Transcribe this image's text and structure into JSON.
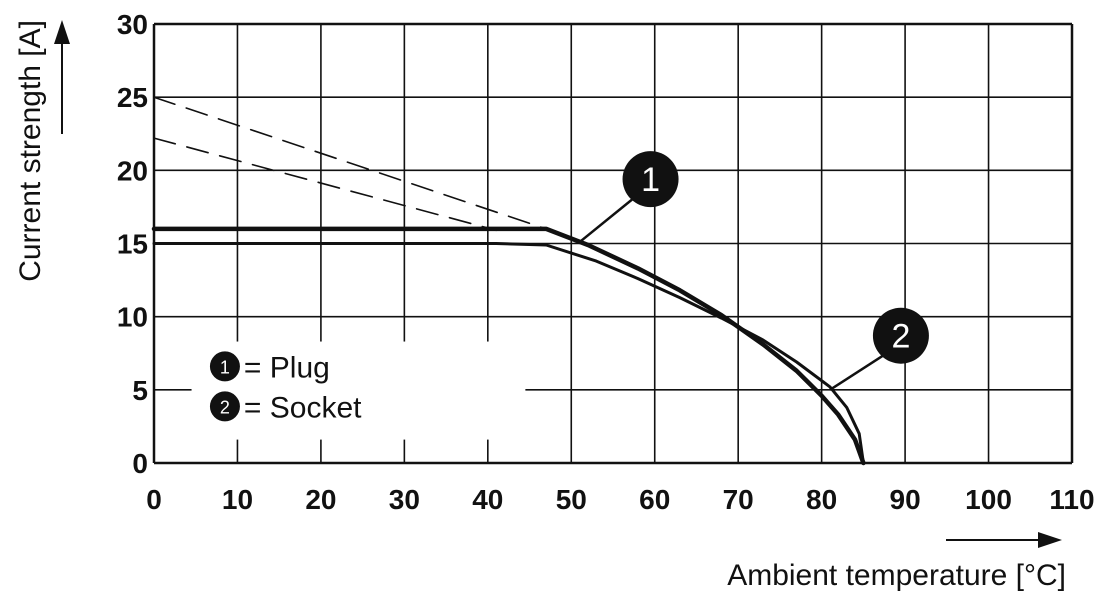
{
  "chart_data": {
    "type": "line",
    "xlabel": "Ambient temperature [°C]",
    "ylabel": "Current strength [A]",
    "xlim": [
      0,
      110
    ],
    "ylim": [
      0,
      30
    ],
    "x_ticks": [
      0,
      10,
      20,
      30,
      40,
      50,
      60,
      70,
      80,
      90,
      100,
      110
    ],
    "y_ticks": [
      0,
      5,
      10,
      15,
      20,
      25,
      30
    ],
    "grid": true,
    "series": [
      {
        "marker": "1",
        "style": "solid",
        "points": [
          [
            0,
            16
          ],
          [
            47,
            16
          ],
          [
            52,
            14.9
          ],
          [
            58,
            13.3
          ],
          [
            63,
            11.8
          ],
          [
            68,
            10.1
          ],
          [
            73,
            8.1
          ],
          [
            77,
            6.3
          ],
          [
            80,
            4.6
          ],
          [
            82,
            3.3
          ],
          [
            84,
            1.6
          ],
          [
            85,
            0
          ]
        ]
      },
      {
        "marker": "2",
        "style": "solid",
        "points": [
          [
            0,
            15
          ],
          [
            41,
            15
          ],
          [
            47,
            14.9
          ],
          [
            53,
            13.8
          ],
          [
            58,
            12.6
          ],
          [
            63,
            11.3
          ],
          [
            68,
            9.9
          ],
          [
            73,
            8.4
          ],
          [
            77,
            6.9
          ],
          [
            81,
            5.2
          ],
          [
            83,
            3.8
          ],
          [
            84.5,
            2
          ],
          [
            85,
            0
          ]
        ]
      },
      {
        "marker": "1",
        "style": "dashed",
        "points": [
          [
            0,
            25
          ],
          [
            47,
            16
          ]
        ]
      },
      {
        "marker": "2",
        "style": "dashed",
        "points": [
          [
            0,
            22.2
          ],
          [
            41,
            15.9
          ]
        ]
      }
    ],
    "annotations": [
      {
        "label": "1",
        "at": [
          59.5,
          19.4
        ],
        "points_to": [
          51,
          15.1
        ]
      },
      {
        "label": "2",
        "at": [
          89.5,
          8.7
        ],
        "points_to": [
          81,
          5.0
        ]
      }
    ],
    "legend": {
      "placement": "bottom-left",
      "entries": [
        {
          "marker": "1",
          "text": "= Plug"
        },
        {
          "marker": "2",
          "text": "= Socket"
        }
      ]
    },
    "colors": {
      "line": "#111111",
      "grid": "#111111",
      "marker_fill": "#111111",
      "background": "#ffffff"
    }
  }
}
